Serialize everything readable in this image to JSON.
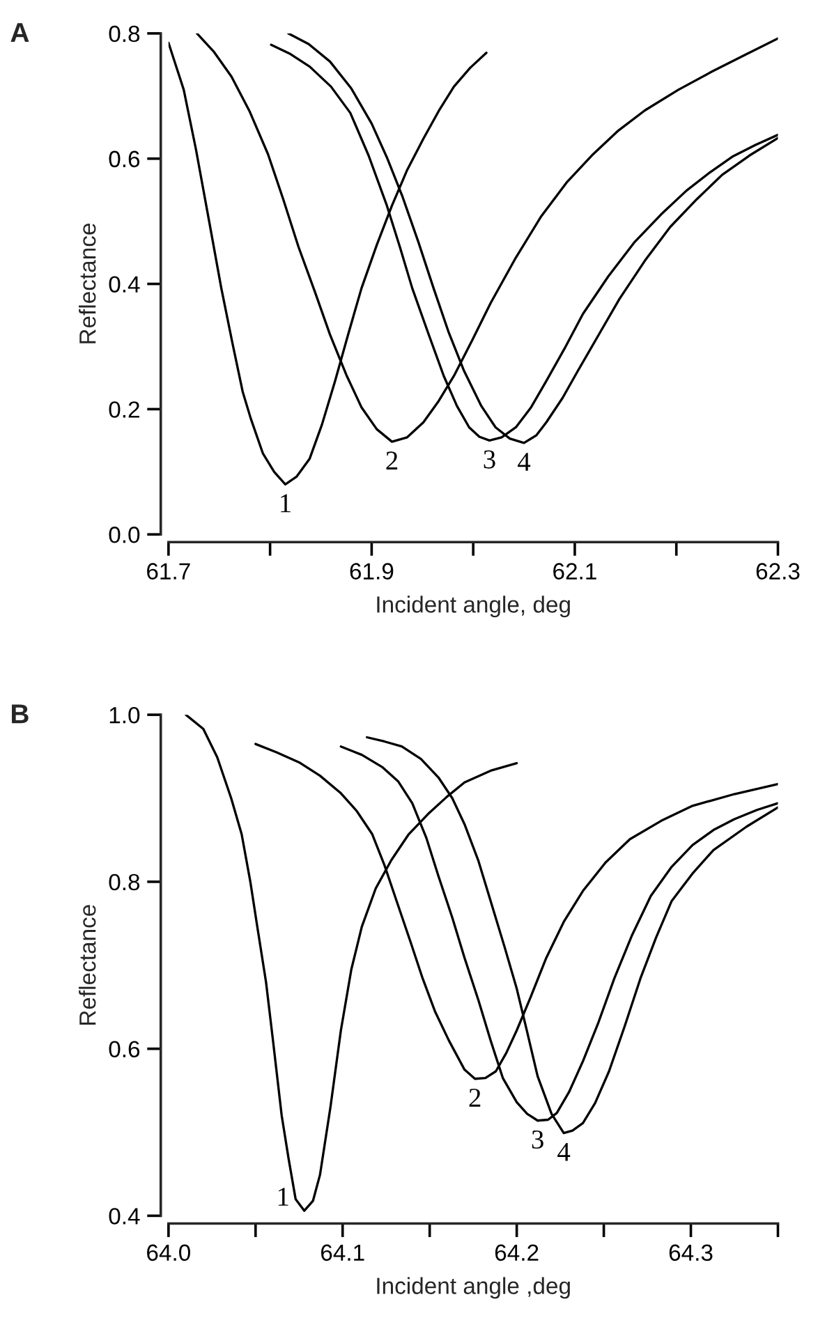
{
  "chart_data": [
    {
      "type": "line",
      "title": "A",
      "xlabel": "Incident angle, deg",
      "ylabel": "Reflectance",
      "xlim": [
        61.7,
        62.3
      ],
      "ylim": [
        0,
        0.8
      ],
      "xticks": [
        61.7,
        {
          "value": 61.8,
          "label": null
        },
        61.9,
        {
          "value": 62.0,
          "label": null
        },
        62.1,
        {
          "value": 62.2,
          "label": null
        },
        62.3
      ],
      "yticks": [
        {
          "value": 0,
          "label": "0.0"
        },
        0.2,
        0.4,
        0.6,
        0.8
      ],
      "grid": false,
      "legend": false,
      "marker": "none",
      "line_style": "solid",
      "series": [
        {
          "name": "1",
          "color": "#000000",
          "x": [
            61.7,
            61.715,
            61.727,
            61.74,
            61.752,
            61.763,
            61.773,
            61.781,
            61.793,
            61.804,
            61.815,
            61.826,
            61.839,
            61.851,
            61.864,
            61.877,
            61.89,
            61.905,
            61.92,
            61.935,
            61.951,
            61.966,
            61.981,
            61.997,
            62.013
          ],
          "values": [
            0.785,
            0.71,
            0.615,
            0.5,
            0.393,
            0.305,
            0.228,
            0.185,
            0.129,
            0.1,
            0.08,
            0.092,
            0.121,
            0.175,
            0.245,
            0.32,
            0.393,
            0.462,
            0.525,
            0.582,
            0.632,
            0.676,
            0.715,
            0.745,
            0.769
          ]
        },
        {
          "name": "2",
          "color": "#000000",
          "x": [
            61.728,
            61.745,
            61.762,
            61.78,
            61.798,
            61.813,
            61.828,
            61.844,
            61.859,
            61.875,
            61.89,
            61.905,
            61.92,
            61.935,
            61.951,
            61.966,
            61.981,
            61.999,
            62.017,
            62.042,
            62.067,
            62.092,
            62.118,
            62.143,
            62.169,
            62.202,
            62.235,
            62.268,
            62.3
          ],
          "values": [
            0.8,
            0.77,
            0.731,
            0.675,
            0.607,
            0.535,
            0.459,
            0.388,
            0.319,
            0.255,
            0.203,
            0.168,
            0.148,
            0.155,
            0.179,
            0.213,
            0.253,
            0.31,
            0.369,
            0.442,
            0.508,
            0.562,
            0.607,
            0.645,
            0.677,
            0.71,
            0.739,
            0.766,
            0.792
          ]
        },
        {
          "name": "3",
          "color": "#000000",
          "x": [
            61.801,
            61.82,
            61.839,
            61.86,
            61.879,
            61.897,
            61.915,
            61.928,
            61.94,
            61.956,
            61.971,
            61.984,
            61.996,
            62.006,
            62.016,
            62.028,
            62.042,
            62.057,
            62.072,
            62.09,
            62.108,
            62.133,
            62.159,
            62.185,
            62.21,
            62.233,
            62.255,
            62.278,
            62.3
          ],
          "values": [
            0.782,
            0.767,
            0.747,
            0.715,
            0.673,
            0.605,
            0.525,
            0.458,
            0.393,
            0.32,
            0.253,
            0.205,
            0.171,
            0.156,
            0.15,
            0.155,
            0.171,
            0.203,
            0.245,
            0.297,
            0.352,
            0.412,
            0.467,
            0.511,
            0.549,
            0.578,
            0.603,
            0.622,
            0.638
          ]
        },
        {
          "name": "4",
          "color": "#000000",
          "x": [
            61.818,
            61.838,
            61.859,
            61.88,
            61.9,
            61.915,
            61.93,
            61.946,
            61.961,
            61.976,
            61.991,
            62.008,
            62.022,
            62.036,
            62.05,
            62.062,
            62.072,
            62.088,
            62.103,
            62.124,
            62.144,
            62.169,
            62.194,
            62.22,
            62.245,
            62.272,
            62.3
          ],
          "values": [
            0.8,
            0.783,
            0.755,
            0.712,
            0.656,
            0.602,
            0.541,
            0.467,
            0.393,
            0.322,
            0.261,
            0.205,
            0.171,
            0.153,
            0.146,
            0.158,
            0.179,
            0.218,
            0.261,
            0.32,
            0.376,
            0.437,
            0.491,
            0.535,
            0.574,
            0.605,
            0.633
          ]
        }
      ]
    },
    {
      "type": "line",
      "title": "B",
      "xlabel": "Incident angle ,deg",
      "ylabel": "Reflectance",
      "xlim": [
        64.0,
        64.35
      ],
      "ylim": [
        0.4,
        1.0
      ],
      "xticks": [
        {
          "value": 64.0,
          "label": "64.0"
        },
        {
          "value": 64.05,
          "label": null
        },
        64.1,
        {
          "value": 64.15,
          "label": null
        },
        64.2,
        {
          "value": 64.25,
          "label": null
        },
        64.3,
        {
          "value": 64.35,
          "label": null
        }
      ],
      "yticks": [
        0.4,
        0.6,
        0.8,
        {
          "value": 1.0,
          "label": "1.0"
        }
      ],
      "grid": false,
      "legend": false,
      "marker": "none",
      "line_style": "solid",
      "series": [
        {
          "name": "1",
          "color": "#000000",
          "x": [
            64.01,
            64.02,
            64.028,
            64.036,
            64.042,
            64.047,
            64.051,
            64.056,
            64.06,
            64.065,
            64.069,
            64.073,
            64.078,
            64.083,
            64.087,
            64.093,
            64.099,
            64.105,
            64.111,
            64.119,
            64.128,
            64.138,
            64.149,
            64.16,
            64.17,
            64.185,
            64.2
          ],
          "values": [
            1.0,
            0.983,
            0.949,
            0.9,
            0.857,
            0.8,
            0.746,
            0.68,
            0.61,
            0.52,
            0.468,
            0.42,
            0.406,
            0.418,
            0.449,
            0.53,
            0.622,
            0.695,
            0.746,
            0.792,
            0.826,
            0.857,
            0.881,
            0.902,
            0.919,
            0.933,
            0.942
          ]
        },
        {
          "name": "2",
          "color": "#000000",
          "x": [
            64.05,
            64.062,
            64.075,
            64.087,
            64.099,
            64.108,
            64.117,
            64.124,
            64.131,
            64.139,
            64.146,
            64.153,
            64.161,
            64.17,
            64.176,
            64.182,
            64.188,
            64.194,
            64.2,
            64.208,
            64.217,
            64.227,
            64.238,
            64.251,
            64.265,
            64.283,
            64.301,
            64.325,
            64.35
          ],
          "values": [
            0.965,
            0.955,
            0.943,
            0.927,
            0.906,
            0.885,
            0.857,
            0.82,
            0.777,
            0.728,
            0.684,
            0.645,
            0.61,
            0.575,
            0.564,
            0.565,
            0.573,
            0.595,
            0.622,
            0.662,
            0.709,
            0.752,
            0.789,
            0.823,
            0.851,
            0.873,
            0.891,
            0.905,
            0.917
          ]
        },
        {
          "name": "3",
          "color": "#000000",
          "x": [
            64.099,
            64.111,
            64.123,
            64.132,
            64.14,
            64.148,
            64.155,
            64.163,
            64.17,
            64.178,
            64.185,
            64.192,
            64.2,
            64.206,
            64.212,
            64.218,
            64.223,
            64.23,
            64.238,
            64.247,
            64.256,
            64.266,
            64.277,
            64.289,
            64.301,
            64.313,
            64.325,
            64.338,
            64.35
          ],
          "values": [
            0.962,
            0.952,
            0.937,
            0.92,
            0.894,
            0.853,
            0.807,
            0.757,
            0.709,
            0.658,
            0.61,
            0.565,
            0.536,
            0.522,
            0.514,
            0.515,
            0.523,
            0.548,
            0.585,
            0.632,
            0.684,
            0.735,
            0.783,
            0.818,
            0.844,
            0.862,
            0.875,
            0.886,
            0.894
          ]
        },
        {
          "name": "4",
          "color": "#000000",
          "x": [
            64.114,
            64.124,
            64.134,
            64.145,
            64.155,
            64.163,
            64.17,
            64.178,
            64.185,
            64.193,
            64.2,
            64.206,
            64.212,
            64.22,
            64.227,
            64.232,
            64.238,
            64.245,
            64.253,
            64.262,
            64.271,
            64.28,
            64.289,
            64.301,
            64.313,
            64.332,
            64.35
          ],
          "values": [
            0.973,
            0.968,
            0.962,
            0.947,
            0.925,
            0.9,
            0.869,
            0.825,
            0.777,
            0.722,
            0.672,
            0.62,
            0.567,
            0.522,
            0.499,
            0.502,
            0.511,
            0.535,
            0.573,
            0.627,
            0.684,
            0.733,
            0.777,
            0.81,
            0.838,
            0.866,
            0.889
          ]
        }
      ]
    }
  ]
}
